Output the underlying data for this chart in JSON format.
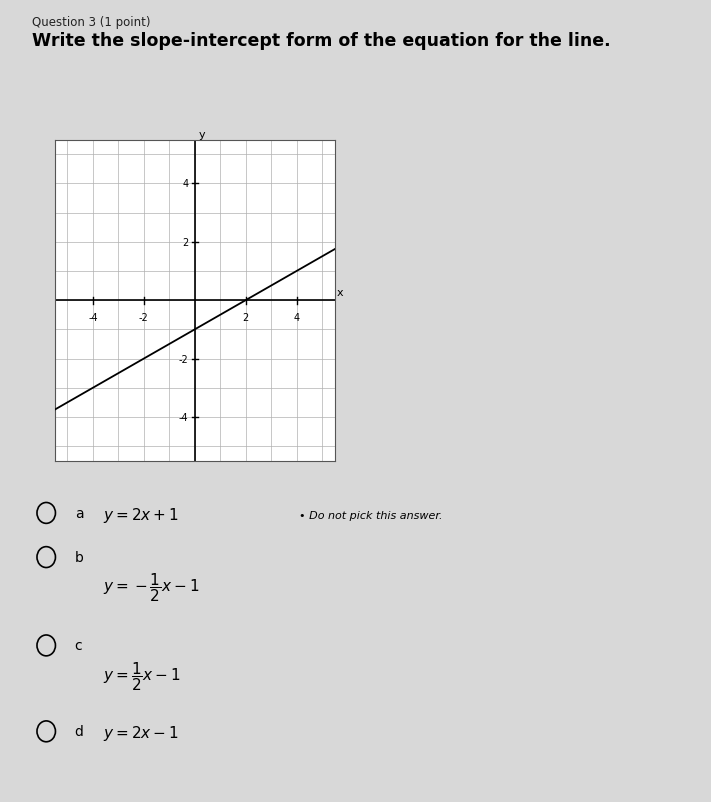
{
  "question_label": "Question 3 (1 point)",
  "question_text": "Write the slope-intercept form of the equation for the line.",
  "graph": {
    "xlim": [
      -5.5,
      5.5
    ],
    "ylim": [
      -5.5,
      5.5
    ],
    "xticks": [
      -4,
      -2,
      2,
      4
    ],
    "yticks": [
      -4,
      -2,
      2,
      4
    ],
    "line_slope": 0.5,
    "line_intercept": -1,
    "grid_color": "#b0b0b0",
    "line_color": "#000000",
    "background_color": "#ffffff"
  },
  "choices": [
    {
      "label": "a",
      "formula": "$y = 2x + 1$",
      "note": "Do not pick this answer."
    },
    {
      "label": "b",
      "formula": "$y = -\\dfrac{1}{2}x - 1$",
      "note": ""
    },
    {
      "label": "c",
      "formula": "$y = \\dfrac{1}{2}x - 1$",
      "note": ""
    },
    {
      "label": "d",
      "formula": "$y = 2x - 1$",
      "note": ""
    }
  ],
  "page_bg": "#d8d8d8",
  "fig_width": 7.11,
  "fig_height": 8.03
}
